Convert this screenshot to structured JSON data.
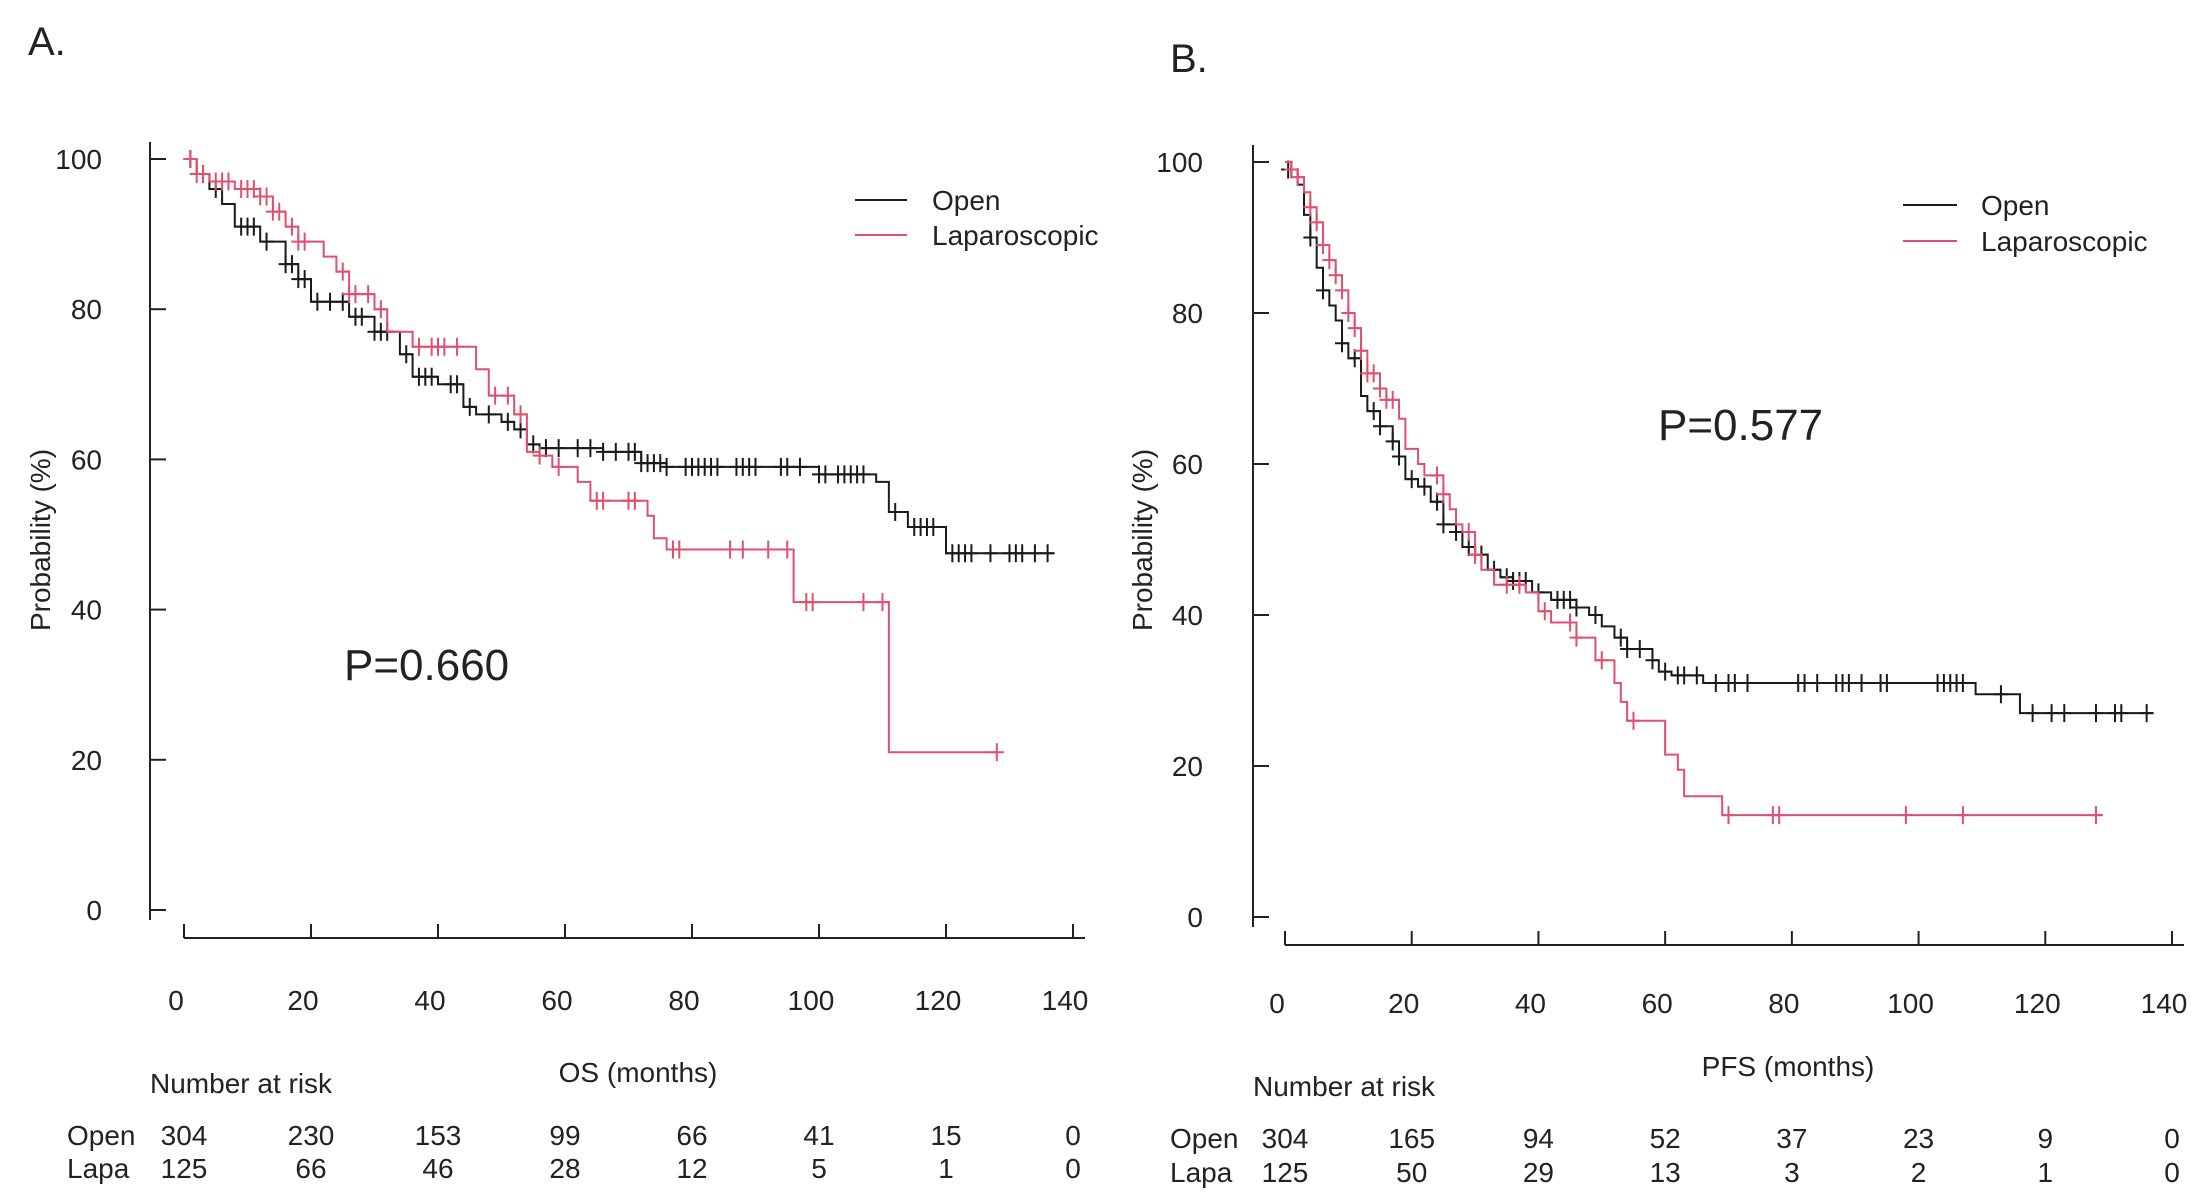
{
  "chart_data": [
    {
      "type": "line",
      "subtype": "kaplan-meier",
      "panel_label": "A.",
      "xlabel": "OS (months)",
      "ylabel": "Probability (%)",
      "xlim": [
        0,
        140
      ],
      "ylim": [
        0,
        100
      ],
      "xticks": [
        0,
        20,
        40,
        60,
        80,
        100,
        120,
        140
      ],
      "yticks": [
        0,
        20,
        40,
        60,
        80,
        100
      ],
      "p_value": "P=0.660",
      "legend_position": "top-right",
      "series": [
        {
          "name": "Open",
          "color": "#1a1a1a",
          "end": 137,
          "steps": [
            [
              0,
              100
            ],
            [
              2,
              98
            ],
            [
              4,
              96
            ],
            [
              6,
              94
            ],
            [
              8,
              91
            ],
            [
              12,
              89
            ],
            [
              16,
              86
            ],
            [
              18,
              84
            ],
            [
              20,
              81
            ],
            [
              26,
              79
            ],
            [
              30,
              77
            ],
            [
              34,
              74
            ],
            [
              36,
              71
            ],
            [
              40,
              70
            ],
            [
              44,
              67
            ],
            [
              46,
              66
            ],
            [
              50,
              65
            ],
            [
              52,
              64
            ],
            [
              54,
              62
            ],
            [
              56,
              61.5
            ],
            [
              66,
              61
            ],
            [
              72,
              59.5
            ],
            [
              76,
              59
            ],
            [
              100,
              58
            ],
            [
              109,
              57
            ],
            [
              111,
              53
            ],
            [
              114,
              51
            ],
            [
              120,
              47.5
            ]
          ],
          "censored": [
            1,
            3,
            5,
            9,
            10,
            11,
            13,
            16,
            17,
            18,
            19,
            21,
            23,
            25,
            27,
            28,
            30,
            31,
            32,
            35,
            37,
            38,
            39,
            42,
            43,
            45,
            48,
            51,
            53,
            55,
            57,
            59,
            62,
            64,
            66,
            68,
            70,
            71,
            72,
            73,
            74,
            75,
            76,
            79,
            80,
            81,
            82,
            83,
            84,
            87,
            88,
            89,
            90,
            94,
            95,
            97,
            100,
            101,
            103,
            104,
            105,
            106,
            107,
            112,
            115,
            116,
            117,
            118,
            121,
            122,
            123,
            124,
            127,
            130,
            131,
            132,
            134,
            136
          ]
        },
        {
          "name": "Laparoscopic",
          "color": "#e0506e",
          "end": 128,
          "steps": [
            [
              0,
              100
            ],
            [
              2,
              98
            ],
            [
              4,
              97
            ],
            [
              8,
              96
            ],
            [
              12,
              95
            ],
            [
              14,
              93
            ],
            [
              16,
              91
            ],
            [
              18,
              89
            ],
            [
              22,
              87
            ],
            [
              24,
              85
            ],
            [
              26,
              82
            ],
            [
              30,
              80
            ],
            [
              32,
              77
            ],
            [
              36,
              75
            ],
            [
              46,
              72
            ],
            [
              48,
              68.5
            ],
            [
              52,
              66
            ],
            [
              54,
              61
            ],
            [
              56,
              60.5
            ],
            [
              58,
              59
            ],
            [
              62,
              57
            ],
            [
              64,
              54.5
            ],
            [
              73,
              52.5
            ],
            [
              74,
              49.5
            ],
            [
              76,
              48
            ],
            [
              96,
              41
            ],
            [
              111,
              21
            ]
          ],
          "censored": [
            1,
            2,
            3,
            5,
            6,
            7,
            9,
            10,
            11,
            12,
            13,
            14,
            15,
            17,
            18,
            19,
            25,
            26,
            27,
            29,
            31,
            37,
            39,
            40,
            41,
            43,
            49,
            51,
            53,
            56,
            59,
            65,
            66,
            70,
            71,
            77,
            78,
            86,
            88,
            92,
            95,
            98,
            99,
            107,
            110,
            128
          ]
        }
      ],
      "risk_table": {
        "title": "Number at risk",
        "rows": [
          {
            "label": "Open",
            "values": [
              "304",
              "230",
              "153",
              "99",
              "66",
              "41",
              "15",
              "0"
            ]
          },
          {
            "label": "Lapa",
            "values": [
              "125",
              "66",
              "46",
              "28",
              "12",
              "5",
              "1",
              "0"
            ]
          }
        ]
      }
    },
    {
      "type": "line",
      "subtype": "kaplan-meier",
      "panel_label": "B.",
      "xlabel": "PFS (months)",
      "ylabel": "Probability (%)",
      "xlim": [
        0,
        140
      ],
      "ylim": [
        0,
        100
      ],
      "xticks": [
        0,
        20,
        40,
        60,
        80,
        100,
        120,
        140
      ],
      "yticks": [
        0,
        20,
        40,
        60,
        80,
        100
      ],
      "p_value": "P=0.577",
      "legend_position": "top-right",
      "series": [
        {
          "name": "Open",
          "color": "#1a1a1a",
          "end": 137,
          "steps": [
            [
              0,
              99
            ],
            [
              2,
              97
            ],
            [
              3,
              93
            ],
            [
              4,
              90
            ],
            [
              5,
              86
            ],
            [
              6,
              83
            ],
            [
              7,
              81
            ],
            [
              8,
              79
            ],
            [
              9,
              76
            ],
            [
              10,
              74
            ],
            [
              12,
              69
            ],
            [
              13,
              67
            ],
            [
              15,
              65
            ],
            [
              17,
              63
            ],
            [
              18,
              61
            ],
            [
              19,
              58
            ],
            [
              21,
              57
            ],
            [
              23,
              55
            ],
            [
              25,
              52
            ],
            [
              27,
              51
            ],
            [
              28,
              49
            ],
            [
              30,
              48
            ],
            [
              32,
              46
            ],
            [
              34,
              45
            ],
            [
              36,
              44.5
            ],
            [
              39,
              43
            ],
            [
              42,
              42
            ],
            [
              46,
              41
            ],
            [
              48,
              40
            ],
            [
              50,
              38.5
            ],
            [
              52,
              37
            ],
            [
              54,
              35.5
            ],
            [
              58,
              34
            ],
            [
              59,
              32.5
            ],
            [
              61,
              32
            ],
            [
              66,
              31
            ],
            [
              109,
              29.5
            ],
            [
              116,
              27
            ]
          ],
          "censored": [
            0.5,
            1,
            4,
            6,
            9,
            11,
            14,
            15,
            17,
            18,
            20,
            22,
            24,
            25,
            27,
            29,
            30,
            31,
            33,
            35,
            36,
            37,
            38,
            40,
            43,
            44,
            45,
            46,
            49,
            53,
            54,
            56,
            58,
            60,
            62,
            63,
            65,
            68,
            70,
            71,
            73,
            81,
            82,
            84,
            87,
            88,
            89,
            91,
            94,
            95,
            103,
            104,
            105,
            106,
            107,
            113,
            118,
            121,
            123,
            128,
            131,
            132,
            136
          ]
        },
        {
          "name": "Laparoscopic",
          "color": "#e0506e",
          "end": 129,
          "steps": [
            [
              0,
              100
            ],
            [
              1,
              99
            ],
            [
              2,
              98
            ],
            [
              3,
              96
            ],
            [
              4,
              94
            ],
            [
              5,
              92
            ],
            [
              6,
              89
            ],
            [
              7,
              87
            ],
            [
              8,
              85
            ],
            [
              9,
              83
            ],
            [
              10,
              80
            ],
            [
              11,
              78
            ],
            [
              12,
              75
            ],
            [
              13,
              72
            ],
            [
              15,
              70
            ],
            [
              16,
              68.5
            ],
            [
              18,
              66
            ],
            [
              19,
              62
            ],
            [
              21,
              60
            ],
            [
              22,
              58.5
            ],
            [
              25,
              56
            ],
            [
              26,
              54
            ],
            [
              27,
              52
            ],
            [
              28,
              51
            ],
            [
              30,
              48
            ],
            [
              31,
              46
            ],
            [
              33,
              44
            ],
            [
              38,
              43
            ],
            [
              40,
              40.5
            ],
            [
              42,
              39
            ],
            [
              46,
              37
            ],
            [
              49,
              34
            ],
            [
              52,
              31
            ],
            [
              53,
              28.5
            ],
            [
              54,
              26
            ],
            [
              60,
              21.5
            ],
            [
              62,
              19.5
            ],
            [
              63,
              16
            ],
            [
              69,
              13.5
            ]
          ],
          "censored": [
            1,
            2,
            4,
            5,
            6,
            7,
            8,
            9,
            10,
            11,
            12,
            13,
            14,
            15,
            16,
            17,
            24,
            25,
            29,
            30,
            35,
            37,
            41,
            45,
            46,
            50,
            55,
            70,
            77,
            78,
            98,
            107,
            128
          ]
        }
      ],
      "risk_table": {
        "title": "Number at risk",
        "rows": [
          {
            "label": "Open",
            "values": [
              "304",
              "165",
              "94",
              "52",
              "37",
              "23",
              "9",
              "0"
            ]
          },
          {
            "label": "Lapa",
            "values": [
              "125",
              "50",
              "29",
              "13",
              "3",
              "2",
              "1",
              "0"
            ]
          }
        ]
      }
    }
  ]
}
